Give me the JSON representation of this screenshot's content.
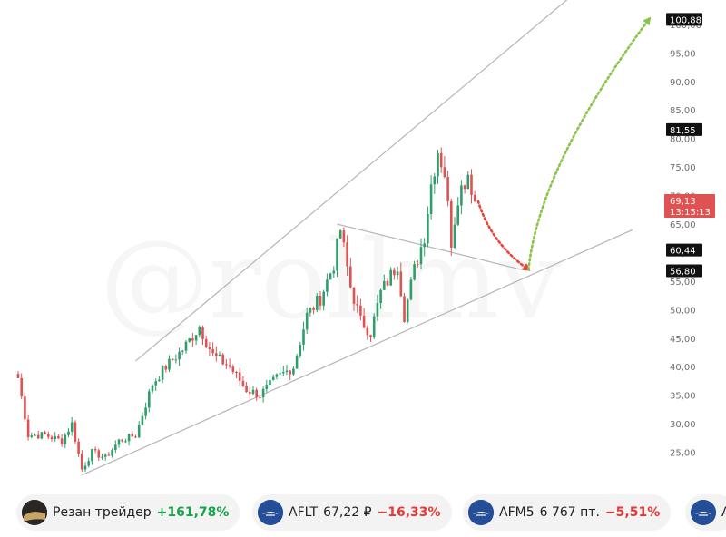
{
  "watermark_text": "@rollmv",
  "chart_data": {
    "type": "candlestick",
    "title": "",
    "ylim": [
      20,
      103
    ],
    "y_ticks": [
      "25,00",
      "30,00",
      "35,00",
      "40,00",
      "45,00",
      "50,00",
      "55,00",
      "60,00",
      "65,00",
      "70,00",
      "75,00",
      "80,00",
      "85,00",
      "90,00",
      "95,00",
      "100,00"
    ],
    "price_tags": [
      {
        "label": "100,88",
        "value": 100.88,
        "kind": "target"
      },
      {
        "label": "81,55",
        "value": 81.55,
        "kind": "level"
      },
      {
        "label": "60,44",
        "value": 60.44,
        "kind": "level"
      },
      {
        "label": "56,80",
        "value": 56.8,
        "kind": "level"
      }
    ],
    "current_price": {
      "label": "69,13",
      "value": 69.13,
      "timer": "13:15:13",
      "color": "#e05252"
    },
    "colors": {
      "up": "#2e9e6a",
      "down": "#e05252",
      "bearish_arrow": "#e8453c",
      "bullish_arrow": "#8bc34a",
      "trendline": "#b5b5b5"
    },
    "waypoints": [
      [
        0,
        38
      ],
      [
        3,
        28
      ],
      [
        8,
        28
      ],
      [
        13,
        27
      ],
      [
        16,
        30
      ],
      [
        19,
        22
      ],
      [
        22,
        25
      ],
      [
        26,
        24
      ],
      [
        30,
        27
      ],
      [
        35,
        28
      ],
      [
        40,
        37
      ],
      [
        44,
        40
      ],
      [
        49,
        43
      ],
      [
        54,
        47
      ],
      [
        58,
        42
      ],
      [
        63,
        40
      ],
      [
        68,
        36
      ],
      [
        72,
        35
      ],
      [
        77,
        38
      ],
      [
        82,
        40
      ],
      [
        86,
        49
      ],
      [
        90,
        52
      ],
      [
        94,
        58
      ],
      [
        96,
        64
      ],
      [
        99,
        54
      ],
      [
        102,
        48
      ],
      [
        105,
        46
      ],
      [
        108,
        53
      ],
      [
        110,
        55
      ],
      [
        113,
        58
      ],
      [
        115,
        49
      ],
      [
        118,
        57
      ],
      [
        121,
        63
      ],
      [
        123,
        72
      ],
      [
        125,
        78
      ],
      [
        127,
        74
      ],
      [
        129,
        62
      ],
      [
        131,
        70
      ],
      [
        134,
        74
      ],
      [
        136,
        69
      ]
    ],
    "trendlines": [
      {
        "name": "upper-channel",
        "p1": [
          35,
          41
        ],
        "p2": [
          175,
          110
        ]
      },
      {
        "name": "lower-channel",
        "p1": [
          19,
          21
        ],
        "p2": [
          183,
          64
        ]
      },
      {
        "name": "inner-resistance",
        "p1": [
          95,
          65
        ],
        "p2": [
          150,
          57
        ]
      }
    ],
    "forecast": [
      {
        "name": "bearish-move",
        "from": [
          137,
          69
        ],
        "to": [
          152,
          57
        ]
      },
      {
        "name": "bullish-target",
        "from": [
          152,
          57
        ],
        "to": [
          188,
          101
        ]
      }
    ]
  },
  "tickers": [
    {
      "name": "Резан трейдер",
      "price": "",
      "change": "+161,78%",
      "direction": "up",
      "icon": "avatar-icon"
    },
    {
      "name": "AFLT",
      "price": "67,22 ₽",
      "change": "−16,33%",
      "direction": "down",
      "icon": "aeroflot-logo-icon"
    },
    {
      "name": "AFM5",
      "price": "6 767 пт.",
      "change": "−5,51%",
      "direction": "down",
      "icon": "aeroflot-logo-icon"
    },
    {
      "name": "A",
      "price": "",
      "change": "",
      "direction": "down",
      "icon": "aeroflot-logo-icon"
    }
  ]
}
